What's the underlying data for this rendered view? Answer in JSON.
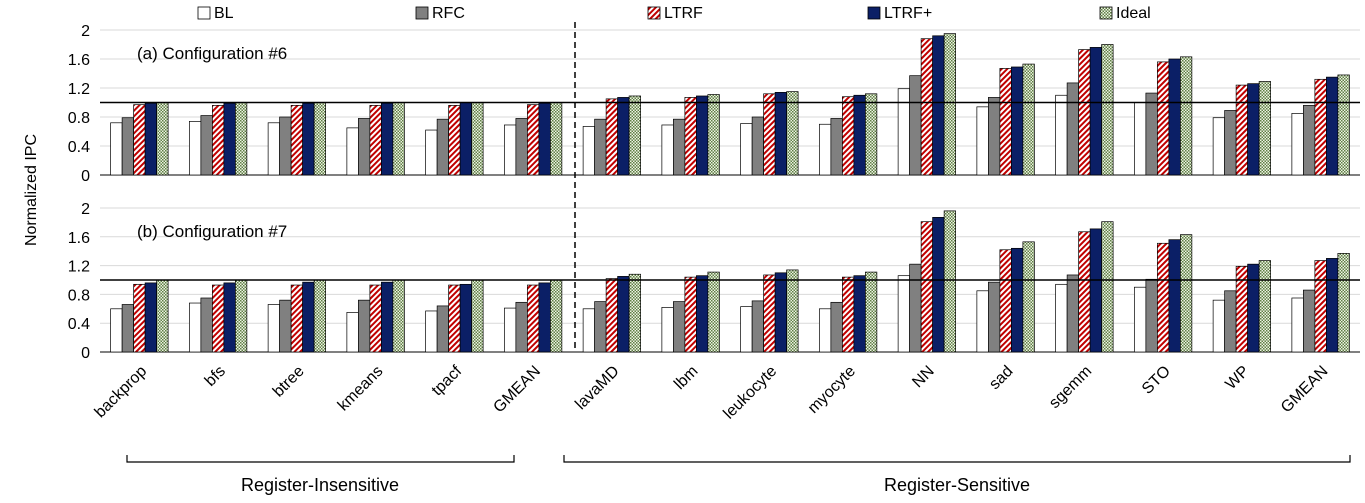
{
  "legend": [
    {
      "label": "BL",
      "color": "#ffffff"
    },
    {
      "label": "RFC",
      "color": "#808080"
    },
    {
      "label": "LTRF",
      "color": "#c00000"
    },
    {
      "label": "LTRF+",
      "color": "#0b1f66"
    },
    {
      "label": "Ideal",
      "color": "#7a9a5c"
    }
  ],
  "ylabel": "Normalized IPC",
  "groups": {
    "insensitive": "Register-Insensitive",
    "sensitive": "Register-Sensitive"
  },
  "chart_data": [
    {
      "type": "bar",
      "title": "(a) Configuration #6",
      "ylabel": "Normalized IPC",
      "ylim": [
        0,
        2
      ],
      "yticks": [
        "0",
        "0.4",
        "0.8",
        "1.2",
        "1.6",
        "2"
      ],
      "reference_line": 1.0,
      "categories": [
        "backprop",
        "bfs",
        "btree",
        "kmeans",
        "tpacf",
        "GMEAN",
        "lavaMD",
        "lbm",
        "leukocyte",
        "myocyte",
        "NN",
        "sad",
        "sgemm",
        "STO",
        "WP",
        "GMEAN"
      ],
      "series": [
        {
          "name": "BL",
          "values": [
            0.72,
            0.74,
            0.72,
            0.65,
            0.62,
            0.69,
            0.67,
            0.69,
            0.71,
            0.7,
            1.19,
            0.94,
            1.1,
            1.0,
            0.79,
            0.85
          ]
        },
        {
          "name": "RFC",
          "values": [
            0.79,
            0.82,
            0.8,
            0.78,
            0.77,
            0.78,
            0.77,
            0.77,
            0.8,
            0.78,
            1.37,
            1.07,
            1.27,
            1.13,
            0.89,
            0.96
          ]
        },
        {
          "name": "LTRF",
          "values": [
            0.97,
            0.96,
            0.96,
            0.96,
            0.96,
            0.97,
            1.05,
            1.07,
            1.12,
            1.08,
            1.88,
            1.47,
            1.73,
            1.56,
            1.24,
            1.32
          ]
        },
        {
          "name": "LTRF+",
          "values": [
            0.99,
            0.99,
            0.99,
            0.99,
            1.0,
            0.99,
            1.07,
            1.09,
            1.14,
            1.1,
            1.92,
            1.49,
            1.76,
            1.6,
            1.26,
            1.35
          ]
        },
        {
          "name": "Ideal",
          "values": [
            1.0,
            1.0,
            1.0,
            1.0,
            1.0,
            1.0,
            1.09,
            1.11,
            1.15,
            1.12,
            1.95,
            1.53,
            1.8,
            1.63,
            1.29,
            1.38
          ]
        }
      ],
      "divider_after_category": 6,
      "grid": true,
      "legend_position": "top"
    },
    {
      "type": "bar",
      "title": "(b) Configuration #7",
      "ylabel": "Normalized IPC",
      "ylim": [
        0,
        2
      ],
      "yticks": [
        "0",
        "0.4",
        "0.8",
        "1.2",
        "1.6",
        "2"
      ],
      "reference_line": 1.0,
      "categories": [
        "backprop",
        "bfs",
        "btree",
        "kmeans",
        "tpacf",
        "GMEAN",
        "lavaMD",
        "lbm",
        "leukocyte",
        "myocyte",
        "NN",
        "sad",
        "sgemm",
        "STO",
        "WP",
        "GMEAN"
      ],
      "series": [
        {
          "name": "BL",
          "values": [
            0.6,
            0.68,
            0.66,
            0.55,
            0.57,
            0.61,
            0.6,
            0.62,
            0.63,
            0.6,
            1.06,
            0.85,
            0.94,
            0.9,
            0.72,
            0.75
          ]
        },
        {
          "name": "RFC",
          "values": [
            0.66,
            0.75,
            0.72,
            0.72,
            0.64,
            0.69,
            0.7,
            0.7,
            0.71,
            0.69,
            1.22,
            0.97,
            1.07,
            1.01,
            0.85,
            0.86
          ]
        },
        {
          "name": "LTRF",
          "values": [
            0.94,
            0.93,
            0.93,
            0.93,
            0.93,
            0.93,
            1.02,
            1.04,
            1.07,
            1.04,
            1.81,
            1.42,
            1.67,
            1.51,
            1.19,
            1.27
          ]
        },
        {
          "name": "LTRF+",
          "values": [
            0.96,
            0.96,
            0.97,
            0.97,
            0.94,
            0.96,
            1.05,
            1.06,
            1.1,
            1.06,
            1.87,
            1.44,
            1.71,
            1.56,
            1.22,
            1.3
          ]
        },
        {
          "name": "Ideal",
          "values": [
            1.0,
            1.0,
            1.0,
            1.0,
            1.0,
            1.0,
            1.08,
            1.11,
            1.14,
            1.11,
            1.96,
            1.53,
            1.81,
            1.63,
            1.27,
            1.37
          ]
        }
      ],
      "divider_after_category": 6,
      "grid": true,
      "legend_position": "top"
    }
  ]
}
